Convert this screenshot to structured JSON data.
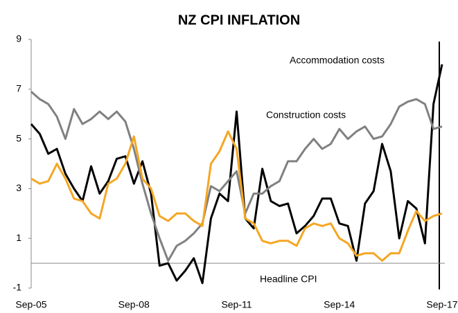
{
  "chart_data": {
    "type": "line",
    "title": "NZ CPI INFLATION",
    "categories": [
      "Sep-05",
      null,
      null,
      null,
      null,
      null,
      null,
      null,
      null,
      null,
      null,
      null,
      "Sep-08",
      null,
      null,
      null,
      null,
      null,
      null,
      null,
      null,
      null,
      null,
      null,
      "Sep-11",
      null,
      null,
      null,
      null,
      null,
      null,
      null,
      null,
      null,
      null,
      null,
      "Sep-14",
      null,
      null,
      null,
      null,
      null,
      null,
      null,
      null,
      null,
      null,
      null,
      "Sep-17"
    ],
    "series": [
      {
        "name": "Accommodation costs",
        "color": "#000000",
        "values": [
          5.6,
          5.2,
          4.4,
          4.6,
          3.6,
          3.0,
          2.5,
          3.9,
          2.8,
          3.3,
          4.2,
          4.3,
          3.2,
          4.1,
          2.8,
          -0.1,
          0.0,
          -0.7,
          -0.3,
          0.2,
          -0.8,
          1.8,
          2.8,
          2.5,
          6.1,
          1.8,
          1.4,
          3.8,
          2.5,
          2.3,
          2.4,
          1.2,
          1.5,
          1.9,
          2.6,
          2.6,
          1.6,
          1.5,
          0.1,
          2.4,
          2.9,
          4.8,
          3.7,
          1.0,
          2.5,
          2.2,
          0.8,
          6.4,
          8.0
        ]
      },
      {
        "name": "Construction costs",
        "color": "#808080",
        "values": [
          6.9,
          6.6,
          6.4,
          5.9,
          5.0,
          6.2,
          5.6,
          5.8,
          6.1,
          5.8,
          6.1,
          5.7,
          4.6,
          3.2,
          2.0,
          1.0,
          0.1,
          0.7,
          0.9,
          1.2,
          1.6,
          3.1,
          2.9,
          3.3,
          3.7,
          2.0,
          2.8,
          2.8,
          3.1,
          3.3,
          4.1,
          4.1,
          4.6,
          5.0,
          4.6,
          4.8,
          5.4,
          5.0,
          5.3,
          5.5,
          5.0,
          5.1,
          5.6,
          6.3,
          6.5,
          6.6,
          6.4,
          5.4,
          5.5
        ]
      },
      {
        "name": "Headline CPI",
        "color": "#f5a623",
        "values": [
          3.4,
          3.2,
          3.3,
          4.0,
          3.4,
          2.6,
          2.5,
          2.0,
          1.8,
          3.2,
          3.4,
          4.0,
          5.1,
          3.4,
          3.0,
          1.9,
          1.7,
          2.0,
          2.0,
          1.7,
          1.5,
          4.0,
          4.5,
          5.3,
          4.6,
          1.8,
          1.6,
          0.9,
          0.8,
          0.9,
          0.9,
          0.7,
          1.4,
          1.6,
          1.5,
          1.6,
          1.0,
          0.8,
          0.3,
          0.4,
          0.4,
          0.1,
          0.4,
          0.4,
          1.3,
          2.1,
          1.7,
          1.9,
          2.0
        ]
      }
    ],
    "ylim": [
      -1,
      9
    ],
    "yticks": [
      -1,
      1,
      3,
      5,
      7,
      9
    ],
    "grid": false
  }
}
